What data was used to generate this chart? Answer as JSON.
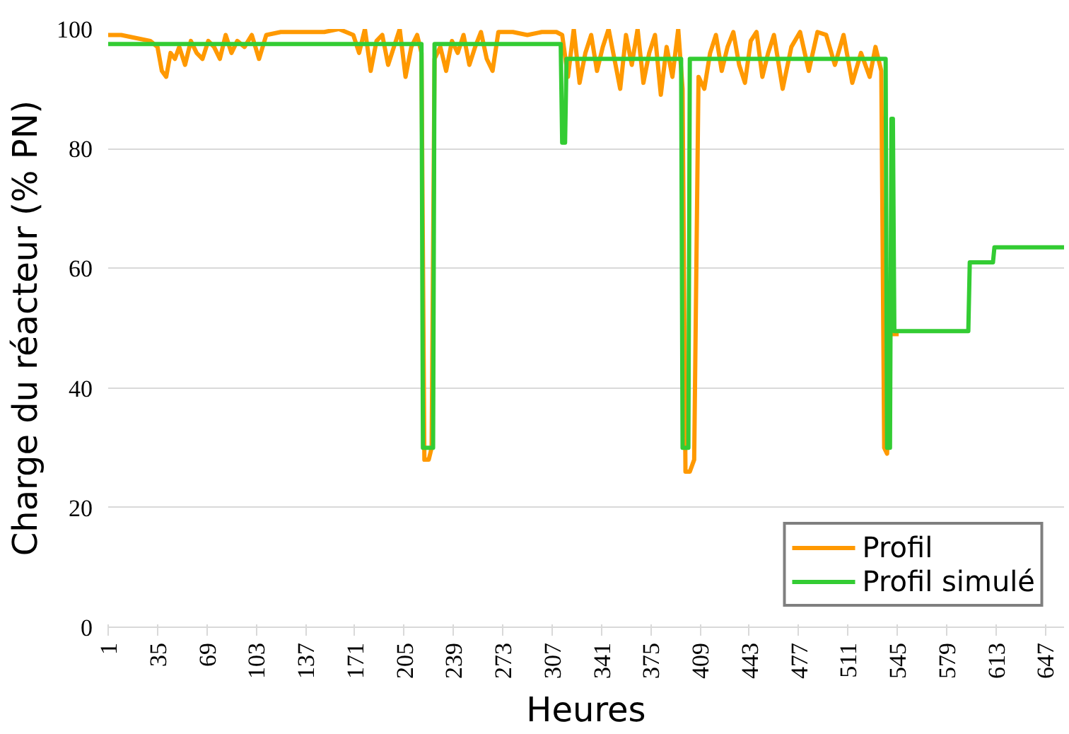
{
  "chart_data": {
    "type": "line",
    "xlabel": "Heures",
    "ylabel": "Charge du réacteur (% PN)",
    "xlim": [
      1,
      660
    ],
    "xticks": [
      1,
      35,
      69,
      103,
      137,
      171,
      205,
      239,
      273,
      307,
      341,
      375,
      409,
      443,
      477,
      511,
      545,
      579,
      613,
      647
    ],
    "ylim": [
      0,
      100
    ],
    "yticks": [
      0,
      20,
      40,
      60,
      80,
      100
    ],
    "grid": "y",
    "legend": "bottom right",
    "line_style": "solid",
    "marker": "none",
    "series": [
      {
        "name": "Profil",
        "color": "#ff9900",
        "x": [
          1,
          5,
          10,
          20,
          30,
          35,
          38,
          41,
          44,
          47,
          50,
          54,
          58,
          62,
          66,
          70,
          74,
          78,
          82,
          86,
          90,
          95,
          100,
          105,
          110,
          120,
          130,
          140,
          150,
          160,
          170,
          174,
          178,
          182,
          186,
          190,
          194,
          198,
          202,
          206,
          210,
          214,
          217,
          219,
          222,
          224,
          226,
          230,
          234,
          238,
          242,
          246,
          250,
          254,
          258,
          262,
          266,
          270,
          280,
          290,
          300,
          310,
          314,
          318,
          322,
          326,
          330,
          334,
          338,
          342,
          346,
          350,
          354,
          358,
          362,
          366,
          370,
          374,
          378,
          382,
          386,
          390,
          394,
          397,
          399,
          402,
          405,
          408,
          412,
          416,
          420,
          424,
          428,
          432,
          436,
          440,
          444,
          448,
          452,
          456,
          460,
          466,
          472,
          478,
          484,
          490,
          496,
          502,
          508,
          514,
          520,
          526,
          530,
          534,
          536,
          538,
          540,
          543,
          546
        ],
        "values": [
          99,
          99,
          99,
          98.5,
          98,
          97,
          93,
          92,
          96,
          95,
          97,
          94,
          98,
          96,
          95,
          98,
          97,
          95,
          99,
          96,
          98,
          97,
          99,
          95,
          99,
          99.5,
          99.5,
          99.5,
          99.5,
          100,
          99,
          96,
          100,
          93,
          98,
          99,
          94,
          97,
          100,
          92,
          97,
          99,
          96,
          28,
          28,
          30,
          95,
          97,
          93,
          98,
          96,
          99,
          94,
          97,
          99.5,
          95,
          93,
          99.5,
          99.5,
          99,
          99.5,
          99.5,
          99,
          92,
          100,
          91,
          96,
          99,
          93,
          97,
          100,
          95,
          90,
          99,
          94,
          100,
          91,
          96,
          99,
          89,
          97,
          92,
          100,
          90,
          26,
          26,
          28,
          92,
          90,
          96,
          99,
          93,
          97,
          99.5,
          94,
          91,
          98,
          99.5,
          92,
          96,
          99,
          90,
          97,
          99.5,
          93,
          99.5,
          99,
          94,
          99,
          91,
          96,
          92,
          97,
          93,
          30,
          29,
          49,
          49,
          49
        ]
      },
      {
        "name": "Profil simulé",
        "color": "#33cc33",
        "x": [
          1,
          217,
          218,
          225,
          226,
          313,
          314,
          316,
          317,
          396,
          397,
          401,
          402,
          537,
          538,
          540,
          541,
          542,
          543,
          594,
          595,
          611,
          612,
          660
        ],
        "values": [
          97.5,
          97.5,
          30,
          30,
          97.5,
          97.5,
          81,
          81,
          95,
          95,
          30,
          30,
          95,
          95,
          30,
          30,
          85,
          85,
          49.5,
          49.5,
          61,
          61,
          63.5,
          63.5
        ]
      }
    ]
  }
}
